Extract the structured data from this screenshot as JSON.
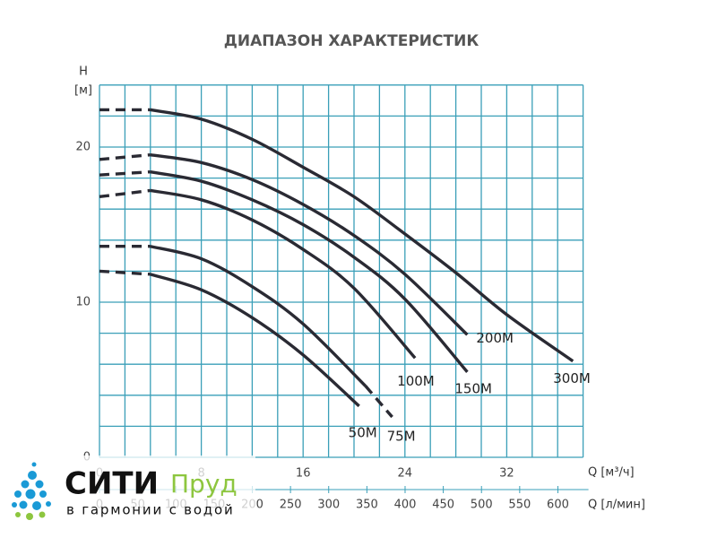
{
  "chart_data": {
    "type": "line",
    "title": "ДИАПАЗОН ХАРАКТЕРИСТИК",
    "y_label": "H",
    "y_unit": "[м]",
    "x_label": "Q [м³/ч]",
    "x2_label": "Q [л/мин]",
    "xlim": [
      0,
      38
    ],
    "xticks": [
      0,
      8,
      16,
      24,
      32
    ],
    "x2lim": [
      0,
      633
    ],
    "x2ticks": [
      0,
      50,
      100,
      150,
      200,
      250,
      300,
      350,
      400,
      450,
      500,
      550,
      600
    ],
    "ylim": [
      0,
      24
    ],
    "yticks": [
      0,
      10,
      20
    ],
    "xgrid": [
      0,
      2,
      4,
      6,
      8,
      10,
      12,
      14,
      16,
      18,
      20,
      22,
      24,
      26,
      28,
      30,
      32,
      34,
      36,
      38
    ],
    "ygrid": [
      0,
      2,
      4,
      6,
      8,
      10,
      12,
      14,
      16,
      18,
      20,
      22,
      24
    ],
    "grid_color": "#3a9fb8",
    "series": [
      {
        "name": "300M",
        "color": "#2a2a33",
        "solid_range": [
          4,
          37.2
        ],
        "x": [
          0,
          4,
          8,
          12,
          16,
          20,
          24,
          28,
          32,
          37.2
        ],
        "values": [
          22.4,
          22.4,
          21.8,
          20.5,
          18.7,
          16.8,
          14.4,
          11.9,
          9.2,
          6.2
        ]
      },
      {
        "name": "200M",
        "color": "#2a2a33",
        "solid_range": [
          4,
          28.9
        ],
        "x": [
          0,
          4,
          8,
          12,
          16,
          20,
          24,
          28.9
        ],
        "values": [
          19.2,
          19.5,
          19.0,
          17.9,
          16.3,
          14.3,
          11.8,
          7.9
        ]
      },
      {
        "name": "150M",
        "color": "#2a2a33",
        "solid_range": [
          4,
          28.9
        ],
        "x": [
          0,
          4,
          8,
          12,
          16,
          20,
          24,
          28.9
        ],
        "values": [
          18.2,
          18.4,
          17.8,
          16.6,
          15.0,
          12.9,
          10.2,
          5.5
        ]
      },
      {
        "name": "100M",
        "color": "#2a2a33",
        "solid_range": [
          4,
          24.8
        ],
        "x": [
          0,
          4,
          8,
          12,
          16,
          20,
          24.8
        ],
        "values": [
          16.8,
          17.2,
          16.6,
          15.3,
          13.4,
          10.9,
          6.4
        ]
      },
      {
        "name": "75M",
        "color": "#2a2a33",
        "solid_range": [
          4,
          20.9
        ],
        "x": [
          0,
          4,
          8,
          12,
          16,
          20.9,
          23
        ],
        "values": [
          13.6,
          13.6,
          12.8,
          11.0,
          8.6,
          4.6,
          2.6
        ]
      },
      {
        "name": "50M",
        "color": "#2a2a33",
        "solid_range": [
          4,
          20.4
        ],
        "x": [
          0,
          4,
          8,
          12,
          16,
          20.4
        ],
        "values": [
          12.0,
          11.8,
          10.8,
          9.0,
          6.6,
          3.3
        ]
      }
    ]
  },
  "logo": {
    "name": "СИТИ",
    "name2": "Пруд",
    "tagline": "в гармонии с водой"
  }
}
